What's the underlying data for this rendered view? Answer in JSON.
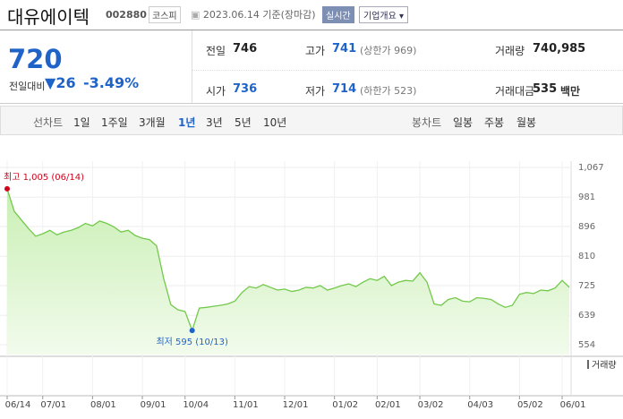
{
  "header": {
    "name": "대유에이텍",
    "code": "002880",
    "market": "코스피",
    "date": "2023.06.14 기준(장마감)",
    "badge": "실시간",
    "button": "기업개요"
  },
  "price": {
    "current": "720",
    "change_label": "전일대비",
    "change": "26",
    "rate": "-3.49%"
  },
  "stats": {
    "rows": [
      [
        {
          "label": "전일",
          "value": "746"
        },
        {
          "label": "고가",
          "value": "741",
          "note": "(상한가 969)"
        },
        {
          "label": "거래량",
          "value": "740,985"
        }
      ],
      [
        {
          "label": "시가",
          "value": "736"
        },
        {
          "label": "저가",
          "value": "714",
          "note": "(하한가 523)"
        },
        {
          "label": "거래대금",
          "value": "535",
          "unit": "백만"
        }
      ]
    ]
  },
  "tabs": {
    "line_label": "선차트",
    "periods": [
      "1일",
      "1주일",
      "3개월",
      "1년",
      "3년",
      "5년",
      "10년"
    ],
    "active": 3,
    "candle_label": "봉차트",
    "candles": [
      "일봉",
      "주봉",
      "월봉"
    ]
  },
  "chart_data": {
    "type": "line",
    "color": "#72c94a",
    "grid": true,
    "categories": [
      "06/14",
      null,
      null,
      null,
      null,
      "07/01",
      null,
      null,
      null,
      null,
      null,
      null,
      "08/01",
      null,
      null,
      null,
      null,
      null,
      null,
      "09/01",
      null,
      null,
      null,
      null,
      null,
      "10/04",
      null,
      null,
      null,
      null,
      null,
      null,
      "11/01",
      null,
      null,
      null,
      null,
      null,
      null,
      "12/01",
      null,
      null,
      null,
      null,
      null,
      null,
      "01/02",
      null,
      null,
      null,
      null,
      null,
      "02/01",
      null,
      null,
      null,
      null,
      null,
      "03/02",
      null,
      null,
      null,
      null,
      null,
      null,
      "04/03",
      null,
      null,
      null,
      null,
      null,
      null,
      "05/02",
      null,
      null,
      null,
      null,
      null,
      "06/01",
      null
    ],
    "values": [
      1005,
      940,
      915,
      890,
      868,
      875,
      885,
      872,
      880,
      885,
      893,
      905,
      898,
      912,
      905,
      895,
      880,
      885,
      870,
      862,
      858,
      840,
      745,
      670,
      655,
      650,
      595,
      660,
      662,
      665,
      668,
      672,
      680,
      705,
      722,
      718,
      728,
      720,
      712,
      715,
      708,
      712,
      720,
      718,
      725,
      712,
      718,
      725,
      730,
      722,
      735,
      745,
      740,
      752,
      725,
      735,
      740,
      738,
      762,
      735,
      672,
      668,
      685,
      690,
      680,
      678,
      690,
      688,
      685,
      672,
      662,
      668,
      700,
      705,
      702,
      712,
      710,
      718,
      740,
      720
    ],
    "ylim": [
      554,
      1067
    ],
    "yticks": [
      {
        "value": 1067,
        "label": "1,067"
      },
      981,
      896,
      810,
      725,
      639,
      554
    ],
    "annotations": [
      {
        "text": "최고 1,005 (06/14)",
        "index": 0
      },
      {
        "text": "최저 595 (10/13)",
        "index": 26
      }
    ],
    "volume_label": "거래량"
  }
}
